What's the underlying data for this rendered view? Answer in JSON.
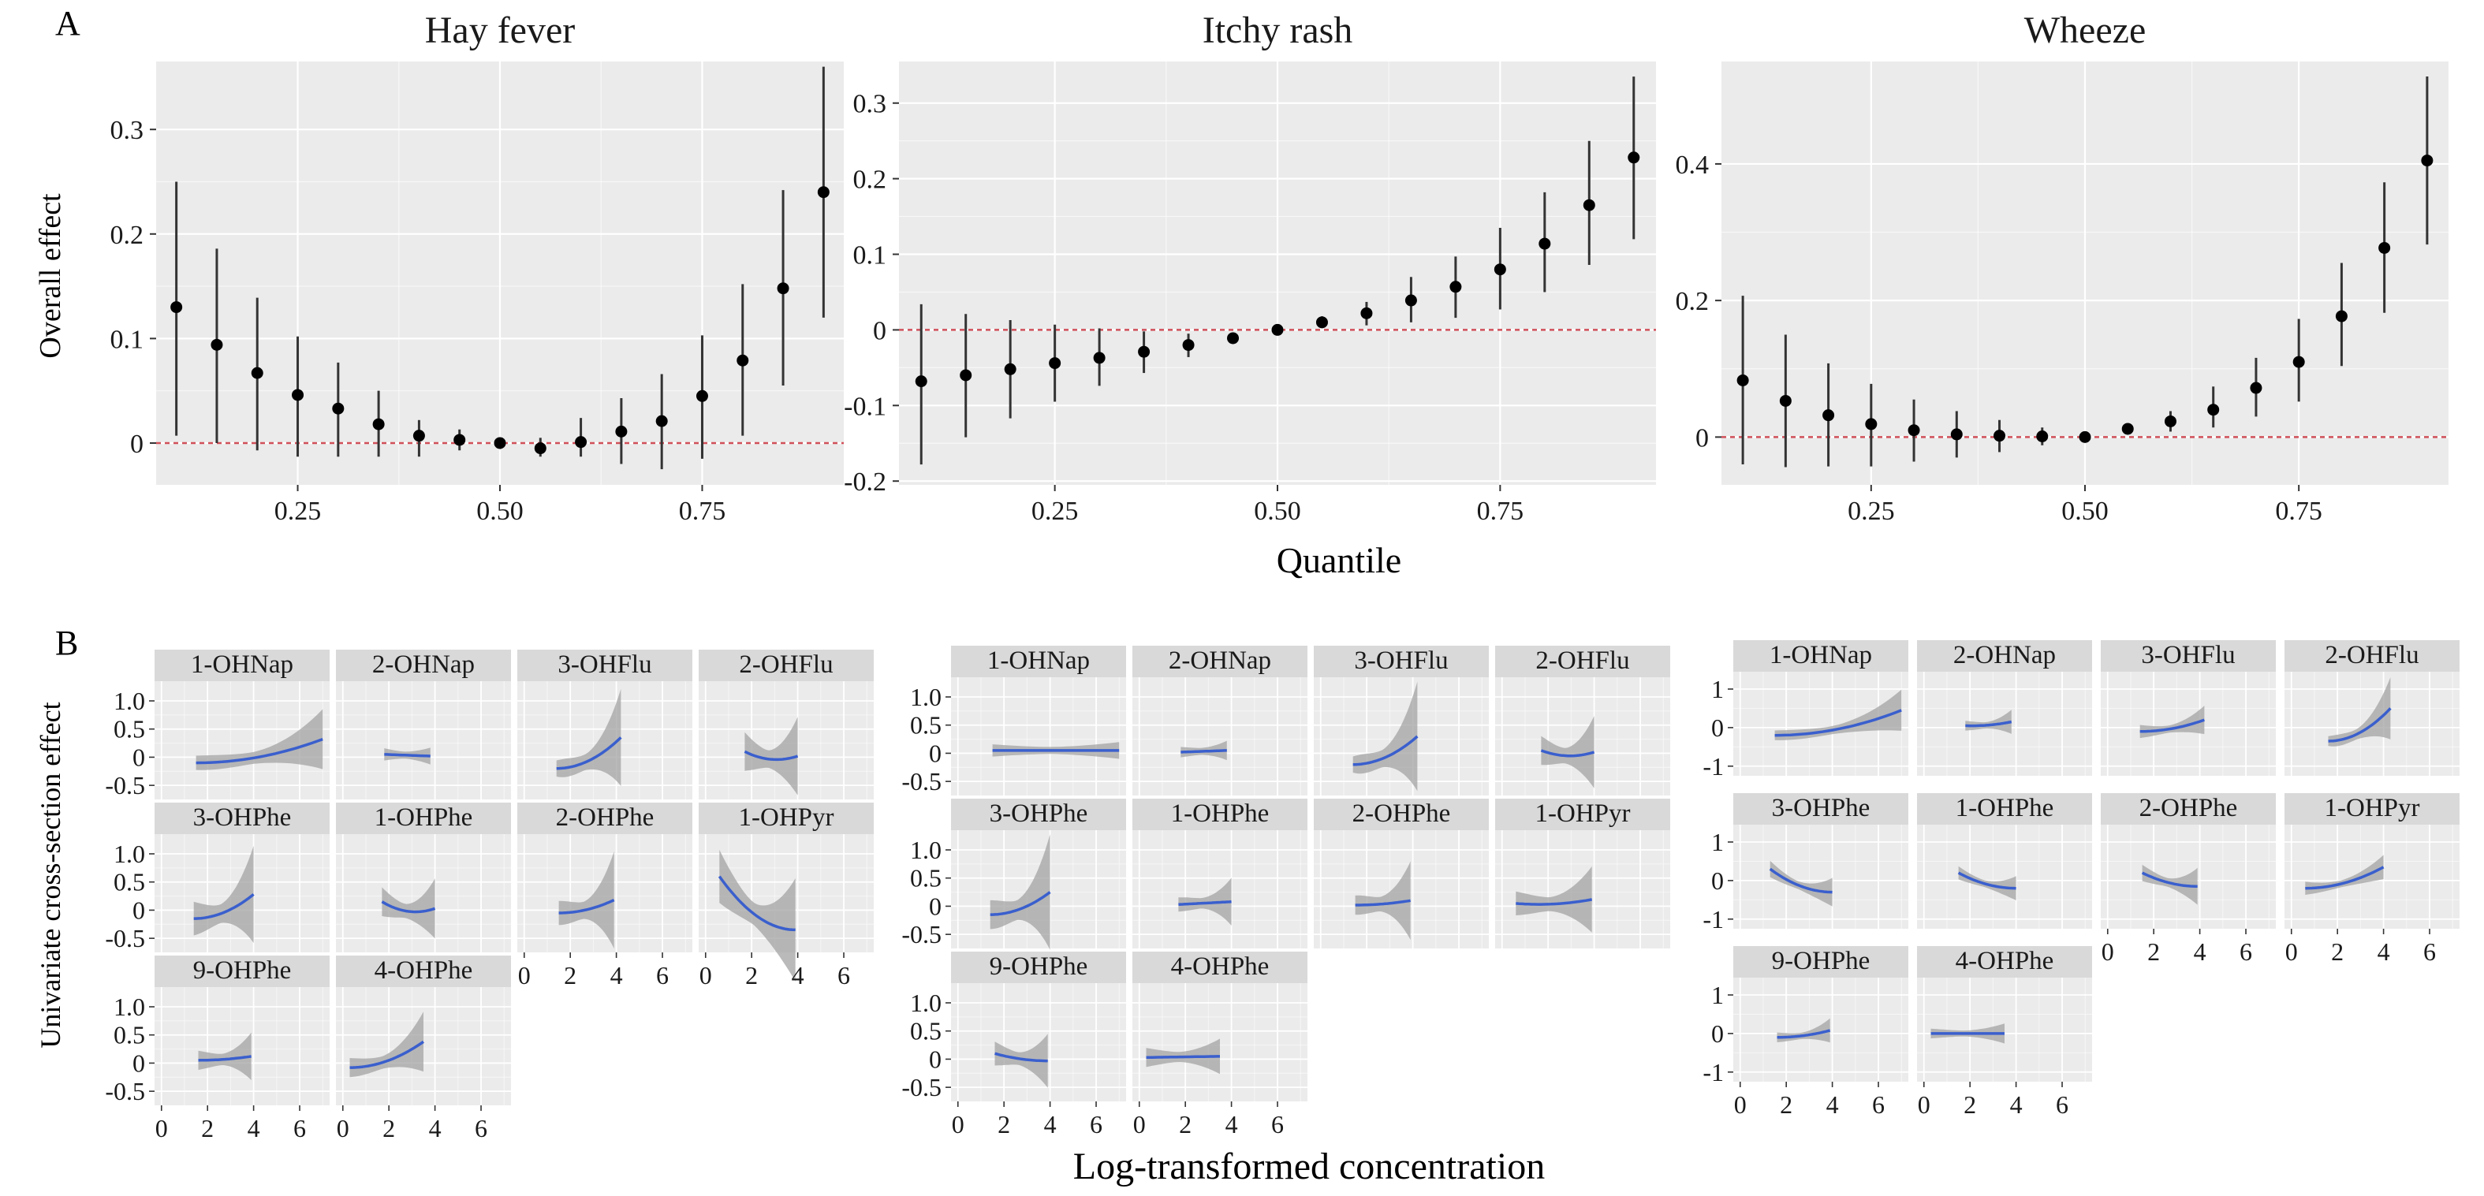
{
  "panel_labels": {
    "a": "A",
    "b": "B"
  },
  "axis_titles": {
    "a_y": "Overall effect",
    "a_x": "Quantile",
    "b_y": "Univariate cross-section effect",
    "b_x": "Log-transformed concentration"
  },
  "colors": {
    "panel_bg": "#ebebeb",
    "grid": "#ffffff",
    "point": "#000000",
    "ref_line": "#d0505a",
    "curve": "#3a5fcd",
    "band": "#a3a3a3",
    "strip": "#d9d9d9"
  },
  "chart_data": [
    {
      "type": "scatter",
      "id": "hay-fever",
      "title": "Hay fever",
      "xlabel": "Quantile",
      "ylabel": "Overall effect",
      "xlim": [
        0.075,
        0.925
      ],
      "ylim": [
        -0.04,
        0.365
      ],
      "xticks": [
        0.25,
        0.5,
        0.75
      ],
      "xtick_labels": [
        "0.25",
        "0.50",
        "0.75"
      ],
      "yticks": [
        0,
        0.1,
        0.2,
        0.3
      ],
      "ytick_labels": [
        "0",
        "0.1",
        "0.2",
        "0.3"
      ],
      "reference_line": 0,
      "x": [
        0.1,
        0.15,
        0.2,
        0.25,
        0.3,
        0.35,
        0.4,
        0.45,
        0.5,
        0.55,
        0.6,
        0.65,
        0.7,
        0.75,
        0.8,
        0.85,
        0.9
      ],
      "y": [
        0.13,
        0.094,
        0.067,
        0.046,
        0.033,
        0.018,
        0.007,
        0.003,
        0.0,
        -0.005,
        0.001,
        0.011,
        0.021,
        0.045,
        0.079,
        0.148,
        0.24
      ],
      "lower": [
        0.007,
        0.0,
        -0.007,
        -0.013,
        -0.013,
        -0.013,
        -0.013,
        -0.007,
        0.0,
        -0.013,
        -0.013,
        -0.02,
        -0.025,
        -0.015,
        0.007,
        0.055,
        0.12
      ],
      "upper": [
        0.25,
        0.186,
        0.139,
        0.102,
        0.077,
        0.05,
        0.022,
        0.013,
        0.0,
        0.005,
        0.024,
        0.043,
        0.066,
        0.103,
        0.152,
        0.242,
        0.36
      ]
    },
    {
      "type": "scatter",
      "id": "itchy-rash",
      "title": "Itchy rash",
      "xlabel": "Quantile",
      "ylabel": "Overall effect",
      "xlim": [
        0.075,
        0.925
      ],
      "ylim": [
        -0.205,
        0.355
      ],
      "xticks": [
        0.25,
        0.5,
        0.75
      ],
      "xtick_labels": [
        "0.25",
        "0.50",
        "0.75"
      ],
      "yticks": [
        -0.2,
        -0.1,
        0,
        0.1,
        0.2,
        0.3
      ],
      "ytick_labels": [
        "-0.2",
        "-0.1",
        "0",
        "0.1",
        "0.2",
        "0.3"
      ],
      "reference_line": 0,
      "x": [
        0.1,
        0.15,
        0.2,
        0.25,
        0.3,
        0.35,
        0.4,
        0.45,
        0.5,
        0.55,
        0.6,
        0.65,
        0.7,
        0.75,
        0.8,
        0.85,
        0.9
      ],
      "y": [
        -0.068,
        -0.06,
        -0.052,
        -0.044,
        -0.037,
        -0.029,
        -0.02,
        -0.011,
        0.0,
        0.01,
        0.022,
        0.039,
        0.057,
        0.08,
        0.114,
        0.165,
        0.228
      ],
      "lower": [
        -0.178,
        -0.142,
        -0.117,
        -0.095,
        -0.074,
        -0.057,
        -0.036,
        -0.016,
        0.0,
        0.003,
        0.006,
        0.01,
        0.016,
        0.027,
        0.05,
        0.086,
        0.12
      ],
      "upper": [
        0.034,
        0.021,
        0.013,
        0.007,
        0.002,
        -0.002,
        -0.005,
        -0.005,
        0.0,
        0.018,
        0.037,
        0.07,
        0.097,
        0.135,
        0.182,
        0.25,
        0.335
      ]
    },
    {
      "type": "scatter",
      "id": "wheeze",
      "title": "Wheeze",
      "xlabel": "Quantile",
      "ylabel": "Overall effect",
      "xlim": [
        0.075,
        0.925
      ],
      "ylim": [
        -0.07,
        0.55
      ],
      "xticks": [
        0.25,
        0.5,
        0.75
      ],
      "xtick_labels": [
        "0.25",
        "0.50",
        "0.75"
      ],
      "yticks": [
        0,
        0.2,
        0.4
      ],
      "ytick_labels": [
        "0",
        "0.2",
        "0.4"
      ],
      "reference_line": 0,
      "x": [
        0.1,
        0.15,
        0.2,
        0.25,
        0.3,
        0.35,
        0.4,
        0.45,
        0.5,
        0.55,
        0.6,
        0.65,
        0.7,
        0.75,
        0.8,
        0.85,
        0.9
      ],
      "y": [
        0.083,
        0.053,
        0.032,
        0.019,
        0.01,
        0.004,
        0.002,
        0.001,
        0.0,
        0.012,
        0.023,
        0.04,
        0.072,
        0.11,
        0.177,
        0.277,
        0.405
      ],
      "lower": [
        -0.04,
        -0.044,
        -0.043,
        -0.043,
        -0.036,
        -0.03,
        -0.022,
        -0.012,
        0.0,
        0.006,
        0.008,
        0.014,
        0.03,
        0.052,
        0.104,
        0.182,
        0.282
      ],
      "upper": [
        0.207,
        0.15,
        0.108,
        0.078,
        0.055,
        0.038,
        0.025,
        0.014,
        0.0,
        0.018,
        0.038,
        0.074,
        0.116,
        0.173,
        0.255,
        0.373,
        0.528
      ]
    },
    {
      "type": "line",
      "id": "univariate-hay-fever",
      "xlabel": "Log-transformed concentration",
      "ylabel": "Univariate cross-section effect",
      "xlim": [
        -0.3,
        7.3
      ],
      "ylim": [
        -0.75,
        1.35
      ],
      "xticks": [
        0,
        2,
        4,
        6
      ],
      "xtick_labels": [
        "0",
        "2",
        "4",
        "6"
      ],
      "yticks": [
        -0.5,
        0,
        0.5,
        1.0
      ],
      "ytick_labels": [
        "-0.5",
        "0",
        "0.5",
        "1.0"
      ],
      "panels": [
        {
          "label": "1-OHNap",
          "x": [
            1.5,
            7.0
          ],
          "fit": [
            -0.1,
            0.32
          ],
          "band": [
            0.1,
            0.45
          ],
          "shape": "up"
        },
        {
          "label": "2-OHNap",
          "x": [
            1.8,
            3.8
          ],
          "fit": [
            0.05,
            0.02
          ],
          "band": [
            0.08,
            0.1
          ],
          "shape": "flat"
        },
        {
          "label": "3-OHFlu",
          "x": [
            1.4,
            4.2
          ],
          "fit": [
            -0.2,
            0.35
          ],
          "band": [
            0.12,
            0.75
          ],
          "shape": "up"
        },
        {
          "label": "2-OHFlu",
          "x": [
            1.7,
            4.0
          ],
          "fit": [
            0.1,
            0.02
          ],
          "band": [
            0.35,
            0.6
          ],
          "shape": "u"
        },
        {
          "label": "3-OHPhe",
          "x": [
            1.4,
            4.0
          ],
          "fit": [
            -0.15,
            0.28
          ],
          "band": [
            0.3,
            0.75
          ],
          "shape": "up"
        },
        {
          "label": "1-OHPhe",
          "x": [
            1.7,
            4.0
          ],
          "fit": [
            0.15,
            0.03
          ],
          "band": [
            0.25,
            0.45
          ],
          "shape": "u"
        },
        {
          "label": "2-OHPhe",
          "x": [
            1.5,
            3.9
          ],
          "fit": [
            -0.05,
            0.18
          ],
          "band": [
            0.2,
            0.75
          ],
          "shape": "up"
        },
        {
          "label": "1-OHPyr",
          "x": [
            0.6,
            3.9
          ],
          "fit": [
            0.6,
            -0.35
          ],
          "band": [
            0.5,
            0.8
          ],
          "shape": "down"
        },
        {
          "label": "9-OHPhe",
          "x": [
            1.6,
            3.9
          ],
          "fit": [
            0.05,
            0.12
          ],
          "band": [
            0.15,
            0.35
          ],
          "shape": "up"
        },
        {
          "label": "4-OHPhe",
          "x": [
            0.3,
            3.5
          ],
          "fit": [
            -0.08,
            0.38
          ],
          "band": [
            0.15,
            0.45
          ],
          "shape": "up"
        }
      ]
    },
    {
      "type": "line",
      "id": "univariate-itchy-rash",
      "xlabel": "Log-transformed concentration",
      "ylabel": "Univariate cross-section effect",
      "xlim": [
        -0.3,
        7.3
      ],
      "ylim": [
        -0.75,
        1.35
      ],
      "xticks": [
        0,
        2,
        4,
        6
      ],
      "xtick_labels": [
        "0",
        "2",
        "4",
        "6"
      ],
      "yticks": [
        -0.5,
        0,
        0.5,
        1.0
      ],
      "ytick_labels": [
        "-0.5",
        "0",
        "0.5",
        "1.0"
      ],
      "panels": [
        {
          "label": "1-OHNap",
          "x": [
            1.5,
            7.0
          ],
          "fit": [
            0.05,
            0.05
          ],
          "band": [
            0.08,
            0.1
          ],
          "shape": "flat"
        },
        {
          "label": "2-OHNap",
          "x": [
            1.8,
            3.8
          ],
          "fit": [
            0.02,
            0.05
          ],
          "band": [
            0.06,
            0.12
          ],
          "shape": "flat"
        },
        {
          "label": "3-OHFlu",
          "x": [
            1.4,
            4.2
          ],
          "fit": [
            -0.2,
            0.3
          ],
          "band": [
            0.12,
            0.85
          ],
          "shape": "up"
        },
        {
          "label": "2-OHFlu",
          "x": [
            1.7,
            4.0
          ],
          "fit": [
            0.05,
            0.02
          ],
          "band": [
            0.25,
            0.55
          ],
          "shape": "u"
        },
        {
          "label": "3-OHPhe",
          "x": [
            1.4,
            4.0
          ],
          "fit": [
            -0.15,
            0.25
          ],
          "band": [
            0.25,
            0.9
          ],
          "shape": "up"
        },
        {
          "label": "1-OHPhe",
          "x": [
            1.7,
            4.0
          ],
          "fit": [
            0.03,
            0.08
          ],
          "band": [
            0.1,
            0.35
          ],
          "shape": "flat"
        },
        {
          "label": "2-OHPhe",
          "x": [
            1.5,
            3.9
          ],
          "fit": [
            0.02,
            0.1
          ],
          "band": [
            0.15,
            0.6
          ],
          "shape": "up"
        },
        {
          "label": "1-OHPyr",
          "x": [
            0.6,
            3.9
          ],
          "fit": [
            0.05,
            0.12
          ],
          "band": [
            0.2,
            0.5
          ],
          "shape": "u"
        },
        {
          "label": "9-OHPhe",
          "x": [
            1.6,
            3.9
          ],
          "fit": [
            0.1,
            -0.03
          ],
          "band": [
            0.2,
            0.4
          ],
          "shape": "down"
        },
        {
          "label": "4-OHPhe",
          "x": [
            0.3,
            3.5
          ],
          "fit": [
            0.03,
            0.05
          ],
          "band": [
            0.15,
            0.25
          ],
          "shape": "flat"
        }
      ]
    },
    {
      "type": "line",
      "id": "univariate-wheeze",
      "xlabel": "Log-transformed concentration",
      "ylabel": "Univariate cross-section effect",
      "xlim": [
        -0.3,
        7.3
      ],
      "ylim": [
        -1.25,
        1.45
      ],
      "xticks": [
        0,
        2,
        4,
        6
      ],
      "xtick_labels": [
        "0",
        "2",
        "4",
        "6"
      ],
      "yticks": [
        -1,
        0,
        1
      ],
      "ytick_labels": [
        "-1",
        "0",
        "1"
      ],
      "panels": [
        {
          "label": "1-OHNap",
          "x": [
            1.5,
            7.0
          ],
          "fit": [
            -0.2,
            0.45
          ],
          "band": [
            0.1,
            0.45
          ],
          "shape": "up"
        },
        {
          "label": "2-OHNap",
          "x": [
            1.8,
            3.8
          ],
          "fit": [
            0.05,
            0.15
          ],
          "band": [
            0.1,
            0.25
          ],
          "shape": "u"
        },
        {
          "label": "3-OHFlu",
          "x": [
            1.4,
            4.2
          ],
          "fit": [
            -0.1,
            0.2
          ],
          "band": [
            0.15,
            0.3
          ],
          "shape": "up"
        },
        {
          "label": "2-OHFlu",
          "x": [
            1.6,
            4.3
          ],
          "fit": [
            -0.35,
            0.5
          ],
          "band": [
            0.1,
            0.7
          ],
          "shape": "up"
        },
        {
          "label": "3-OHPhe",
          "x": [
            1.3,
            4.0
          ],
          "fit": [
            0.3,
            -0.3
          ],
          "band": [
            0.2,
            0.3
          ],
          "shape": "down"
        },
        {
          "label": "1-OHPhe",
          "x": [
            1.5,
            4.0
          ],
          "fit": [
            0.2,
            -0.2
          ],
          "band": [
            0.15,
            0.25
          ],
          "shape": "down"
        },
        {
          "label": "2-OHPhe",
          "x": [
            1.5,
            3.9
          ],
          "fit": [
            0.2,
            -0.15
          ],
          "band": [
            0.2,
            0.4
          ],
          "shape": "down"
        },
        {
          "label": "1-OHPyr",
          "x": [
            0.6,
            4.0
          ],
          "fit": [
            -0.2,
            0.35
          ],
          "band": [
            0.15,
            0.25
          ],
          "shape": "up"
        },
        {
          "label": "9-OHPhe",
          "x": [
            1.6,
            3.9
          ],
          "fit": [
            -0.1,
            0.08
          ],
          "band": [
            0.1,
            0.25
          ],
          "shape": "up"
        },
        {
          "label": "4-OHPhe",
          "x": [
            0.3,
            3.5
          ],
          "fit": [
            0.0,
            0.0
          ],
          "band": [
            0.1,
            0.2
          ],
          "shape": "flat"
        }
      ]
    }
  ]
}
